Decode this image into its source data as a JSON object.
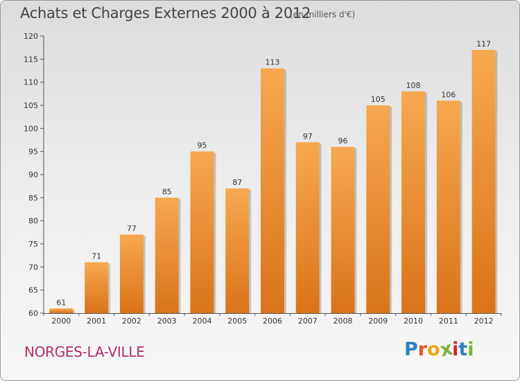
{
  "header": {
    "title": "Achats et Charges Externes 2000 à 2012",
    "unit": "(en milliers d'€)"
  },
  "footer": {
    "city": "NORGES-LA-VILLE",
    "logo_letters": [
      "P",
      "r",
      "o",
      "x",
      "i",
      "t",
      "i"
    ],
    "logo_colors": [
      "#2c7fc4",
      "#e05a1a",
      "#f0a21a",
      "#7ab33c",
      "#d8232a",
      "#2c7fc4",
      "#7ab33c"
    ]
  },
  "colors": {
    "bar_light": "#f7a850",
    "bar_dark": "#d9741a",
    "axis": "#555555",
    "title": "#444444",
    "city": "#b0306a"
  },
  "chart_data": {
    "type": "bar",
    "title": "Achats et Charges Externes 2000 à 2012",
    "subtitle": "(en milliers d'€)",
    "xlabel": "",
    "ylabel": "",
    "categories": [
      "2000",
      "2001",
      "2002",
      "2003",
      "2004",
      "2005",
      "2006",
      "2007",
      "2008",
      "2009",
      "2010",
      "2011",
      "2012"
    ],
    "values": [
      61,
      71,
      77,
      85,
      95,
      87,
      113,
      97,
      96,
      105,
      108,
      106,
      117
    ],
    "ylim": [
      60,
      120
    ],
    "yticks": [
      60,
      65,
      70,
      75,
      80,
      85,
      90,
      95,
      100,
      105,
      110,
      115,
      120
    ],
    "grid": false,
    "legend": "none"
  }
}
